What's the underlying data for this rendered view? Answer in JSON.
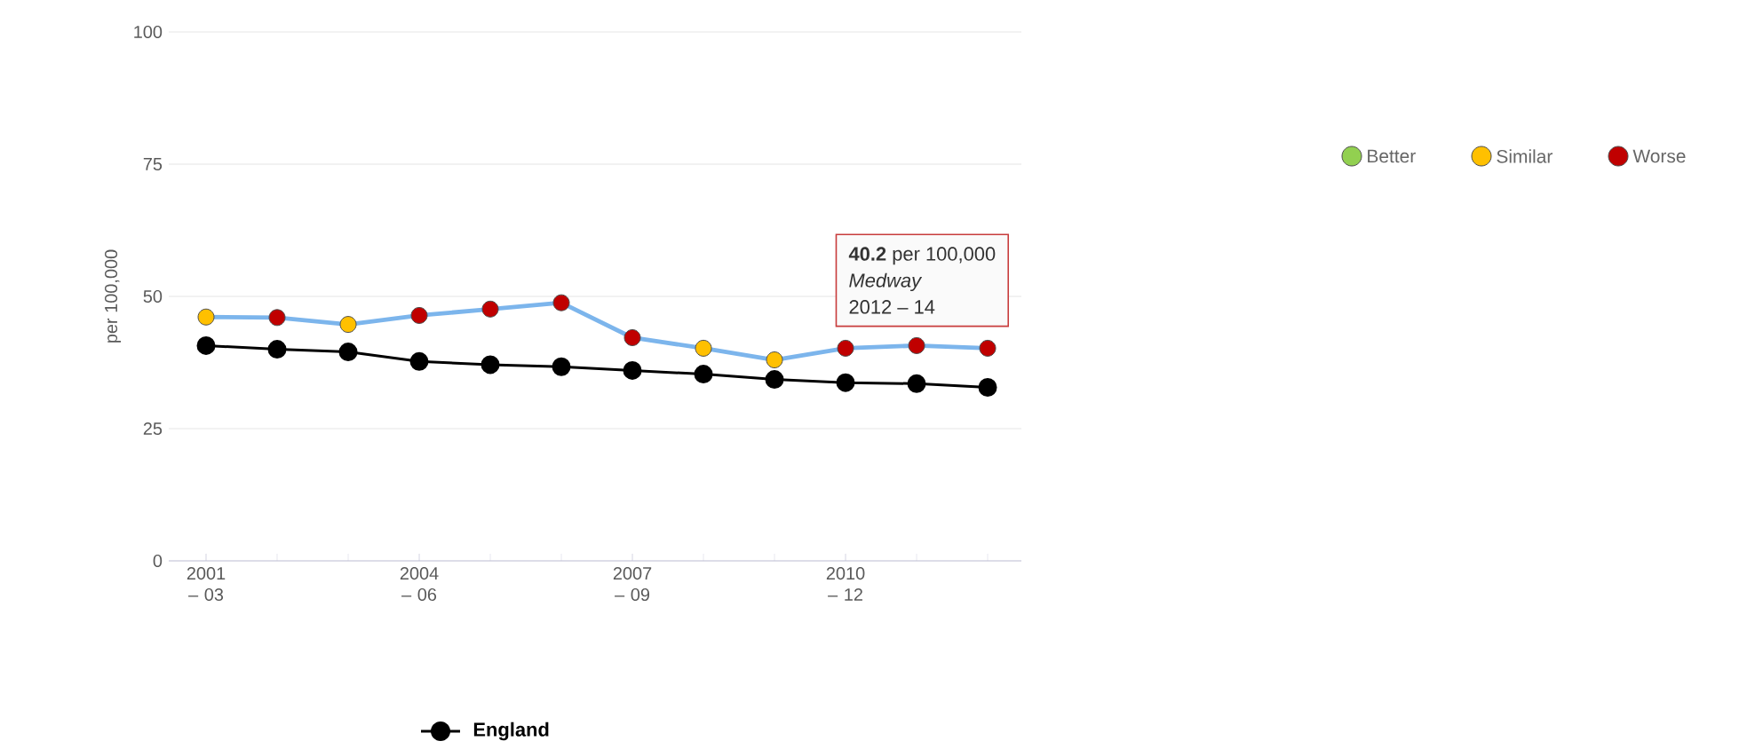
{
  "chart_data": {
    "type": "line",
    "ylabel": "per 100,000",
    "categories": [
      "2001 – 03",
      null,
      null,
      "2004 – 06",
      null,
      null,
      "2007 – 09",
      null,
      null,
      "2010 – 12",
      null,
      null
    ],
    "ylim": [
      0,
      100
    ],
    "yticks": [
      0,
      25,
      50,
      75,
      100
    ],
    "grid": "y",
    "marker": "circle",
    "legend": "right",
    "series": [
      {
        "color": "#7cb5ec",
        "colors": [
          "#ffc000",
          "#c00000",
          "#ffc000",
          "#c00000",
          "#c00000",
          "#c00000",
          "#c00000",
          "#ffc000",
          "#ffc000",
          "#c00000",
          "#c00000",
          "#c00000"
        ],
        "values": [
          46.1,
          46.0,
          44.7,
          46.4,
          47.6,
          48.8,
          42.2,
          40.2,
          38.0,
          40.2,
          40.7,
          40.2
        ]
      },
      {
        "name": "England",
        "color": "#000000",
        "values": [
          40.7,
          40.0,
          39.5,
          37.7,
          37.1,
          36.7,
          36.0,
          35.3,
          34.3,
          33.7,
          33.5,
          32.8
        ]
      },
      {
        "name": "Better",
        "color": "#92d050",
        "values": [
          null,
          null,
          null,
          null,
          null,
          null,
          null,
          null,
          null,
          null,
          null,
          null
        ]
      },
      {
        "name": "Similar",
        "color": "#ffc000",
        "values": [
          null,
          null,
          null,
          null,
          null,
          null,
          null,
          null,
          null,
          null,
          null,
          null
        ]
      },
      {
        "name": "Worse",
        "color": "#c00000",
        "values": [
          null,
          null,
          null,
          null,
          null,
          null,
          null,
          null,
          null,
          null,
          null,
          null
        ]
      }
    ],
    "annotations": [
      "**40.2** per 100,000",
      "Medway",
      "2012 – 14"
    ]
  }
}
